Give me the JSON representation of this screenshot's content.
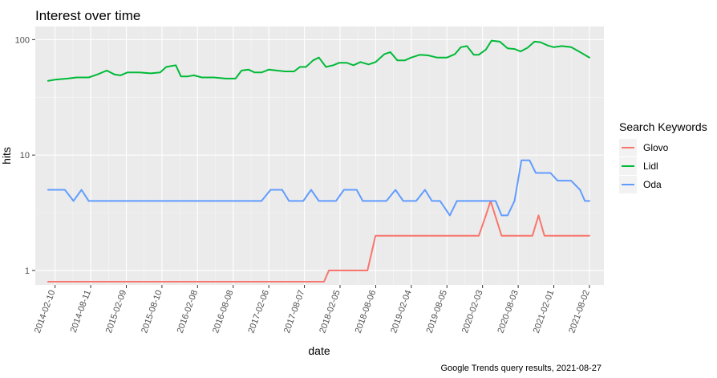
{
  "chart_data": {
    "type": "line",
    "title": "Interest over time",
    "xlabel": "date",
    "ylabel": "hits",
    "caption": "Google Trends query results, 2021-08-27",
    "y_scale": "log10",
    "ylim": [
      0.75,
      130
    ],
    "xlim": [
      "2013-11-01",
      "2021-10-15"
    ],
    "y_ticks": [
      {
        "value": 1,
        "label": "1"
      },
      {
        "value": 10,
        "label": "10"
      },
      {
        "value": 100,
        "label": "100"
      }
    ],
    "x_ticks": [
      "2014-02-10",
      "2014-08-11",
      "2015-02-09",
      "2015-08-10",
      "2016-02-08",
      "2016-08-08",
      "2017-02-06",
      "2017-08-07",
      "2018-02-05",
      "2018-08-06",
      "2019-02-04",
      "2019-08-05",
      "2020-02-03",
      "2020-08-03",
      "2021-02-01",
      "2021-08-02"
    ],
    "grid": true,
    "legend": {
      "title": "Search Keywords",
      "position": "right"
    },
    "series": [
      {
        "name": "Glovo",
        "color": "#F8766D",
        "points": [
          [
            "2014-01-05",
            0.8
          ],
          [
            "2017-11-15",
            0.8
          ],
          [
            "2017-12-10",
            1
          ],
          [
            "2018-06-25",
            1
          ],
          [
            "2018-08-05",
            2
          ],
          [
            "2020-01-15",
            2
          ],
          [
            "2020-02-20",
            3
          ],
          [
            "2020-03-15",
            4
          ],
          [
            "2020-05-10",
            2
          ],
          [
            "2020-10-15",
            2
          ],
          [
            "2020-11-15",
            3
          ],
          [
            "2020-12-15",
            2
          ],
          [
            "2021-08-02",
            2
          ]
        ]
      },
      {
        "name": "Lidl",
        "color": "#00BA38",
        "points": [
          [
            "2014-01-05",
            44
          ],
          [
            "2014-02-10",
            45
          ],
          [
            "2014-04-15",
            46
          ],
          [
            "2014-06-01",
            47
          ],
          [
            "2014-08-01",
            47
          ],
          [
            "2014-09-15",
            50
          ],
          [
            "2014-11-01",
            54
          ],
          [
            "2014-12-10",
            50
          ],
          [
            "2015-01-10",
            49
          ],
          [
            "2015-02-15",
            52
          ],
          [
            "2015-04-15",
            52
          ],
          [
            "2015-06-15",
            51
          ],
          [
            "2015-08-01",
            52
          ],
          [
            "2015-09-01",
            58
          ],
          [
            "2015-10-20",
            60
          ],
          [
            "2015-11-15",
            48
          ],
          [
            "2015-12-20",
            48
          ],
          [
            "2016-01-20",
            49
          ],
          [
            "2016-03-01",
            47
          ],
          [
            "2016-05-01",
            47
          ],
          [
            "2016-07-01",
            46
          ],
          [
            "2016-08-20",
            46
          ],
          [
            "2016-09-20",
            54
          ],
          [
            "2016-10-25",
            55
          ],
          [
            "2016-11-25",
            52
          ],
          [
            "2017-01-01",
            52
          ],
          [
            "2017-02-06",
            55
          ],
          [
            "2017-03-20",
            54
          ],
          [
            "2017-05-01",
            53
          ],
          [
            "2017-06-15",
            53
          ],
          [
            "2017-07-15",
            58
          ],
          [
            "2017-08-15",
            58
          ],
          [
            "2017-09-20",
            66
          ],
          [
            "2017-10-20",
            70
          ],
          [
            "2017-11-25",
            58
          ],
          [
            "2018-01-01",
            60
          ],
          [
            "2018-02-01",
            63
          ],
          [
            "2018-03-10",
            63
          ],
          [
            "2018-04-15",
            60
          ],
          [
            "2018-05-20",
            64
          ],
          [
            "2018-07-01",
            61
          ],
          [
            "2018-08-06",
            64
          ],
          [
            "2018-09-20",
            75
          ],
          [
            "2018-10-20",
            78
          ],
          [
            "2018-11-25",
            66
          ],
          [
            "2019-01-01",
            66
          ],
          [
            "2019-02-04",
            70
          ],
          [
            "2019-03-20",
            74
          ],
          [
            "2019-05-01",
            73
          ],
          [
            "2019-06-15",
            70
          ],
          [
            "2019-08-05",
            70
          ],
          [
            "2019-09-15",
            75
          ],
          [
            "2019-10-15",
            86
          ],
          [
            "2019-11-15",
            88
          ],
          [
            "2019-12-20",
            74
          ],
          [
            "2020-01-15",
            74
          ],
          [
            "2020-02-20",
            82
          ],
          [
            "2020-03-20",
            98
          ],
          [
            "2020-05-01",
            96
          ],
          [
            "2020-06-10",
            84
          ],
          [
            "2020-07-15",
            83
          ],
          [
            "2020-08-15",
            79
          ],
          [
            "2020-09-20",
            85
          ],
          [
            "2020-10-25",
            96
          ],
          [
            "2020-11-25",
            95
          ],
          [
            "2021-01-01",
            89
          ],
          [
            "2021-02-01",
            86
          ],
          [
            "2021-03-15",
            88
          ],
          [
            "2021-05-01",
            86
          ],
          [
            "2021-06-15",
            78
          ],
          [
            "2021-08-02",
            70
          ]
        ]
      },
      {
        "name": "Oda",
        "color": "#619CFF",
        "points": [
          [
            "2014-01-05",
            5
          ],
          [
            "2014-04-01",
            5
          ],
          [
            "2014-05-15",
            4
          ],
          [
            "2014-06-25",
            5
          ],
          [
            "2014-08-01",
            4
          ],
          [
            "2016-12-31",
            4
          ],
          [
            "2017-02-15",
            5
          ],
          [
            "2017-04-15",
            5
          ],
          [
            "2017-05-20",
            4
          ],
          [
            "2017-08-01",
            4
          ],
          [
            "2017-09-10",
            5
          ],
          [
            "2017-10-20",
            4
          ],
          [
            "2017-12-15",
            4
          ],
          [
            "2018-01-15",
            4
          ],
          [
            "2018-02-25",
            5
          ],
          [
            "2018-05-01",
            5
          ],
          [
            "2018-06-01",
            4
          ],
          [
            "2018-09-30",
            4
          ],
          [
            "2018-11-15",
            5
          ],
          [
            "2018-12-25",
            4
          ],
          [
            "2019-03-01",
            4
          ],
          [
            "2019-04-15",
            5
          ],
          [
            "2019-05-20",
            4
          ],
          [
            "2019-07-01",
            4
          ],
          [
            "2019-08-20",
            3
          ],
          [
            "2019-09-25",
            4
          ],
          [
            "2020-01-15",
            4
          ],
          [
            "2020-03-15",
            4
          ],
          [
            "2020-04-10",
            4
          ],
          [
            "2020-05-10",
            3
          ],
          [
            "2020-06-10",
            3
          ],
          [
            "2020-07-15",
            4
          ],
          [
            "2020-08-20",
            9
          ],
          [
            "2020-09-30",
            9
          ],
          [
            "2020-11-01",
            7
          ],
          [
            "2021-01-15",
            7
          ],
          [
            "2021-02-20",
            6
          ],
          [
            "2021-04-30",
            6
          ],
          [
            "2021-06-15",
            5
          ],
          [
            "2021-07-10",
            4
          ],
          [
            "2021-08-02",
            4
          ]
        ]
      }
    ]
  }
}
